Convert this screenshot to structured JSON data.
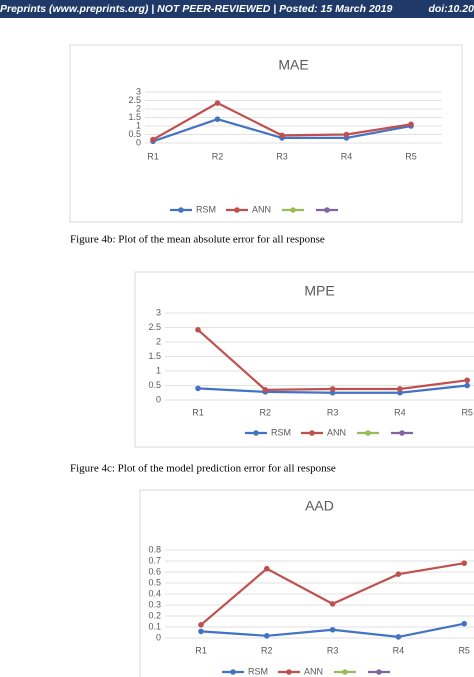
{
  "header": {
    "left": "Preprints (www.preprints.org)  |  NOT PEER-REVIEWED  |  Posted: 15 March 2019",
    "right": "doi:10.20"
  },
  "captions": [
    "Figure 4b: Plot of the  mean absolute error for all response",
    "Figure 4c: Plot of the model prediction error for all response"
  ],
  "chart_data": [
    {
      "type": "line",
      "title": "MAE",
      "categories": [
        "R1",
        "R2",
        "R3",
        "R4",
        "R5"
      ],
      "series": [
        {
          "name": "RSM",
          "color": "#4472c4",
          "values": [
            0.1,
            1.4,
            0.3,
            0.3,
            1.0
          ]
        },
        {
          "name": "ANN",
          "color": "#c0504d",
          "values": [
            0.2,
            2.35,
            0.45,
            0.5,
            1.1
          ]
        }
      ],
      "ylim": [
        0,
        3
      ],
      "yticks": [
        0,
        0.5,
        1,
        1.5,
        2,
        2.5,
        3
      ],
      "grid": true
    },
    {
      "type": "line",
      "title": "MPE",
      "categories": [
        "R1",
        "R2",
        "R3",
        "R4",
        "R5"
      ],
      "series": [
        {
          "name": "RSM",
          "color": "#4472c4",
          "values": [
            0.4,
            0.28,
            0.25,
            0.25,
            0.5
          ]
        },
        {
          "name": "ANN",
          "color": "#c0504d",
          "values": [
            2.42,
            0.35,
            0.38,
            0.38,
            0.68
          ]
        }
      ],
      "ylim": [
        0,
        3
      ],
      "yticks": [
        0,
        0.5,
        1,
        1.5,
        2,
        2.5,
        3
      ],
      "grid": true
    },
    {
      "type": "line",
      "title": "AAD",
      "categories": [
        "R1",
        "R2",
        "R3",
        "R4",
        "R5"
      ],
      "series": [
        {
          "name": "RSM",
          "color": "#4472c4",
          "values": [
            0.06,
            0.02,
            0.075,
            0.01,
            0.13
          ]
        },
        {
          "name": "ANN",
          "color": "#c0504d",
          "values": [
            0.12,
            0.63,
            0.31,
            0.58,
            0.68
          ]
        }
      ],
      "ylim": [
        0,
        0.8
      ],
      "yticks": [
        0,
        0.1,
        0.2,
        0.3,
        0.4,
        0.5,
        0.6,
        0.7,
        0.8
      ],
      "grid": true
    }
  ]
}
